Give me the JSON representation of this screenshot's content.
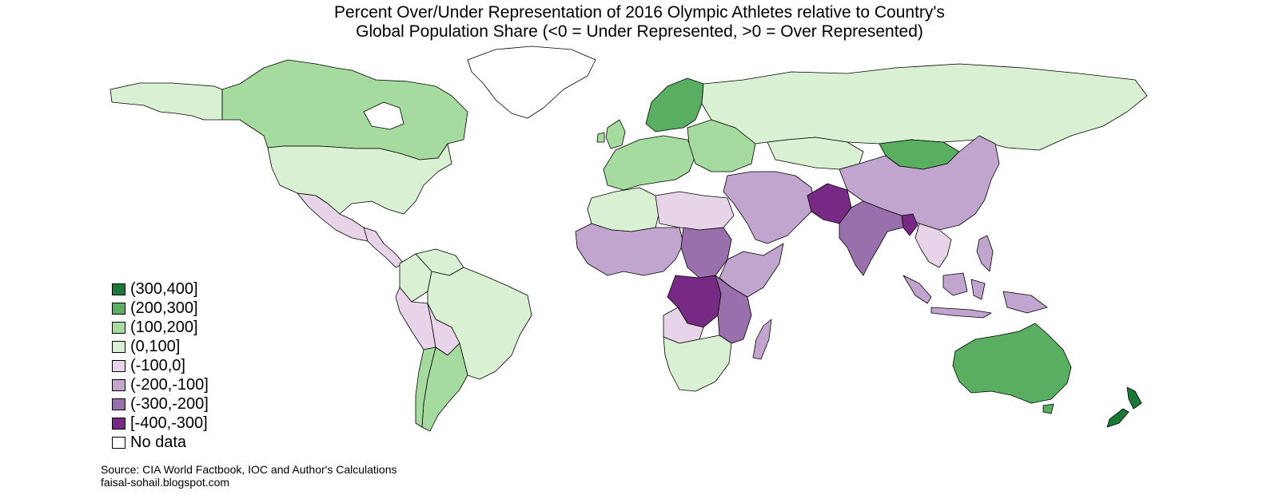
{
  "title": {
    "line1": "Percent Over/Under Representation of 2016 Olympic Athletes relative to Country's",
    "line2": "Global Population Share (<0 = Under Represented, >0 = Over Represented)"
  },
  "legend": [
    {
      "label": "(300,400]",
      "color": "#1b7837"
    },
    {
      "label": "(200,300]",
      "color": "#5aae61"
    },
    {
      "label": "(100,200]",
      "color": "#a6dba0"
    },
    {
      "label": "(0,100]",
      "color": "#d9f0d3"
    },
    {
      "label": "(-100,0]",
      "color": "#e7d4e8"
    },
    {
      "label": "(-200,-100]",
      "color": "#c2a5cf"
    },
    {
      "label": "(-300,-200]",
      "color": "#9970ab"
    },
    {
      "label": "[-400,-300]",
      "color": "#762a83"
    },
    {
      "label": "No data",
      "color": "#ffffff"
    }
  ],
  "source": {
    "line1": "Source: CIA World Factbook, IOC and Author's Calculations",
    "line2": "faisal-sohail.blogspot.com"
  },
  "regions": [
    {
      "name": "alaska",
      "bin": "(0,100]"
    },
    {
      "name": "canada",
      "bin": "(100,200]"
    },
    {
      "name": "greenland",
      "bin": "No data"
    },
    {
      "name": "united-states",
      "bin": "(0,100]"
    },
    {
      "name": "mexico",
      "bin": "(-100,0]"
    },
    {
      "name": "central-america",
      "bin": "(-100,0]"
    },
    {
      "name": "colombia",
      "bin": "(0,100]"
    },
    {
      "name": "venezuela",
      "bin": "(0,100]"
    },
    {
      "name": "peru",
      "bin": "(-100,0]"
    },
    {
      "name": "brazil",
      "bin": "(0,100]"
    },
    {
      "name": "bolivia",
      "bin": "(-100,0]"
    },
    {
      "name": "argentina",
      "bin": "(100,200]"
    },
    {
      "name": "chile",
      "bin": "(100,200]"
    },
    {
      "name": "uk-ireland",
      "bin": "(100,200]"
    },
    {
      "name": "scandinavia",
      "bin": "(200,300]"
    },
    {
      "name": "western-europe",
      "bin": "(100,200]"
    },
    {
      "name": "eastern-europe",
      "bin": "(100,200]"
    },
    {
      "name": "russia",
      "bin": "(0,100]"
    },
    {
      "name": "kazakhstan",
      "bin": "(0,100]"
    },
    {
      "name": "mongolia",
      "bin": "(200,300]"
    },
    {
      "name": "china",
      "bin": "(-200,-100]"
    },
    {
      "name": "pakistan",
      "bin": "[-400,-300]"
    },
    {
      "name": "india",
      "bin": "(-300,-200]"
    },
    {
      "name": "bangladesh",
      "bin": "[-400,-300]"
    },
    {
      "name": "southeast-asia",
      "bin": "(-100,0]"
    },
    {
      "name": "middle-east",
      "bin": "(-200,-100]"
    },
    {
      "name": "north-africa",
      "bin": "(0,100]"
    },
    {
      "name": "egypt-libya",
      "bin": "(-100,0]"
    },
    {
      "name": "west-africa",
      "bin": "(-200,-100]"
    },
    {
      "name": "sudan",
      "bin": "(-300,-200]"
    },
    {
      "name": "horn-of-africa",
      "bin": "(-200,-100]"
    },
    {
      "name": "dr-congo",
      "bin": "[-400,-300]"
    },
    {
      "name": "east-africa",
      "bin": "(-300,-200]"
    },
    {
      "name": "angola",
      "bin": "(-100,0]"
    },
    {
      "name": "southern-africa",
      "bin": "(0,100]"
    },
    {
      "name": "madagascar",
      "bin": "(-200,-100]"
    },
    {
      "name": "indonesia",
      "bin": "(-200,-100]"
    },
    {
      "name": "philippines",
      "bin": "(-200,-100]"
    },
    {
      "name": "australia",
      "bin": "(200,300]"
    },
    {
      "name": "new-zealand",
      "bin": "(300,400]"
    }
  ]
}
